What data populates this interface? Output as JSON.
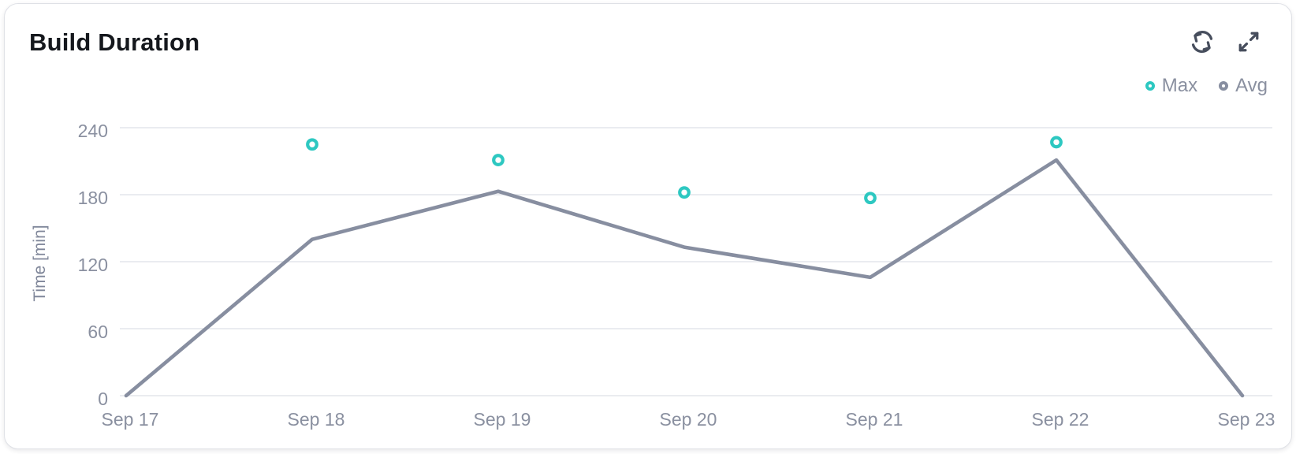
{
  "card": {
    "title": "Build Duration"
  },
  "toolbar": {
    "refresh_icon": "refresh-sync-arrows",
    "expand_icon": "expand-diagonal-arrows"
  },
  "colors": {
    "accent_teal": "#2dc8c1",
    "line_gray": "#878ea0",
    "grid": "#e3e6eb",
    "text_muted": "#8a90a0",
    "icon": "#474e5d",
    "title_text": "#15181d",
    "marker_fill": "#ffffff"
  },
  "chart_data": {
    "type": "line",
    "title": "Build Duration",
    "categories": [
      "Sep 17",
      "Sep 18",
      "Sep 19",
      "Sep 20",
      "Sep 21",
      "Sep 22",
      "Sep 23"
    ],
    "series": [
      {
        "name": "Max",
        "type": "scatter",
        "color": "#2dc8c1",
        "values": [
          null,
          225,
          211,
          182,
          177,
          227,
          null
        ]
      },
      {
        "name": "Avg",
        "type": "line",
        "color": "#878ea0",
        "values": [
          0,
          140,
          183,
          133,
          106,
          211,
          0
        ]
      }
    ],
    "xlabel": "",
    "ylabel": "Time [min]",
    "yticks": [
      0,
      60,
      120,
      180,
      240
    ],
    "ylim": [
      0,
      240
    ],
    "grid": true,
    "legend_position": "top-right"
  }
}
